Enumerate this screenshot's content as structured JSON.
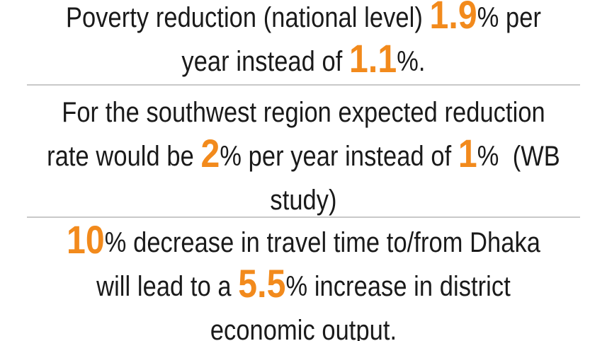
{
  "blocks": [
    {
      "lines": [
        {
          "segments": [
            {
              "text": "Poverty reduction (national level) "
            },
            {
              "text": "1.9",
              "highlight": true
            },
            {
              "text": "% per"
            }
          ]
        },
        {
          "segments": [
            {
              "text": "year instead of "
            },
            {
              "text": "1.1",
              "highlight": true
            },
            {
              "text": "%."
            }
          ]
        }
      ]
    },
    {
      "lines": [
        {
          "segments": [
            {
              "text": "For the southwest region expected reduction"
            }
          ]
        },
        {
          "segments": [
            {
              "text": "rate would be "
            },
            {
              "text": "2",
              "highlight": true
            },
            {
              "text": "% per year instead of "
            },
            {
              "text": "1",
              "highlight": true
            },
            {
              "text": "%  (WB"
            }
          ]
        },
        {
          "segments": [
            {
              "text": "study)"
            }
          ]
        }
      ]
    },
    {
      "lines": [
        {
          "segments": [
            {
              "text": "10",
              "highlight": true
            },
            {
              "text": "% decrease in travel time to/from Dhaka"
            }
          ]
        },
        {
          "segments": [
            {
              "text": "will lead to a "
            },
            {
              "text": "5.5",
              "highlight": true
            },
            {
              "text": "% increase in district"
            }
          ]
        },
        {
          "segments": [
            {
              "text": "economic output."
            }
          ]
        }
      ]
    }
  ],
  "colors": {
    "highlight": "#f28a1c",
    "text": "#1a1a1a",
    "divider": "#c9c9c9"
  }
}
